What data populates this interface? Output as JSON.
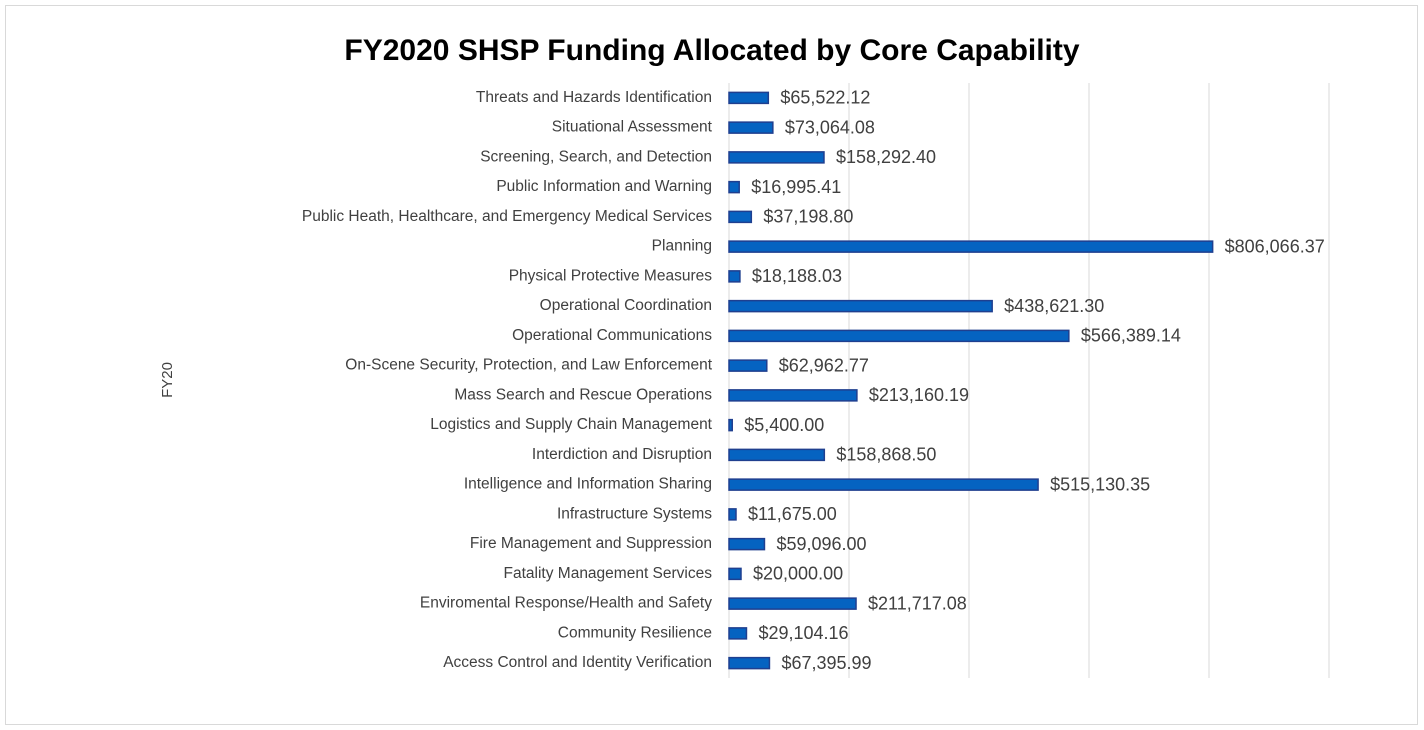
{
  "chart_data": {
    "type": "bar",
    "orientation": "horizontal",
    "title": "FY2020 SHSP Funding Allocated by Core Capability",
    "y_label": "FY20",
    "categories": [
      "Threats and Hazards Identification",
      "Situational Assessment",
      "Screening, Search, and Detection",
      "Public Information and Warning",
      "Public Heath, Healthcare, and Emergency Medical Services",
      "Planning",
      "Physical Protective Measures",
      "Operational Coordination",
      "Operational Communications",
      "On-Scene Security, Protection, and Law Enforcement",
      "Mass Search and Rescue Operations",
      "Logistics and Supply Chain Management",
      "Interdiction and Disruption",
      "Intelligence and Information Sharing",
      "Infrastructure Systems",
      "Fire Management and Suppression",
      "Fatality Management Services",
      "Enviromental Response/Health and Safety",
      "Community Resilience",
      "Access Control and Identity Verification"
    ],
    "values": [
      65522.12,
      73064.08,
      158292.4,
      16995.41,
      37198.8,
      806066.37,
      18188.03,
      438621.3,
      566389.14,
      62962.77,
      213160.19,
      5400.0,
      158868.5,
      515130.35,
      11675.0,
      59096.0,
      20000.0,
      211717.08,
      29104.16,
      67395.99
    ],
    "value_labels": [
      "$65,522.12",
      "$73,064.08",
      "$158,292.40",
      "$16,995.41",
      "$37,198.80",
      "$806,066.37",
      "$18,188.03",
      "$438,621.30",
      "$566,389.14",
      "$62,962.77",
      "$213,160.19",
      "$5,400.00",
      "$158,868.50",
      "$515,130.35",
      "$11,675.00",
      "$59,096.00",
      "$20,000.00",
      "$211,717.08",
      "$29,104.16",
      "$67,395.99"
    ],
    "color": "#0563c1",
    "xlim": [
      0,
      1000000
    ],
    "xticks": [
      0,
      200000,
      400000,
      600000,
      800000,
      1000000
    ],
    "grid": true
  }
}
